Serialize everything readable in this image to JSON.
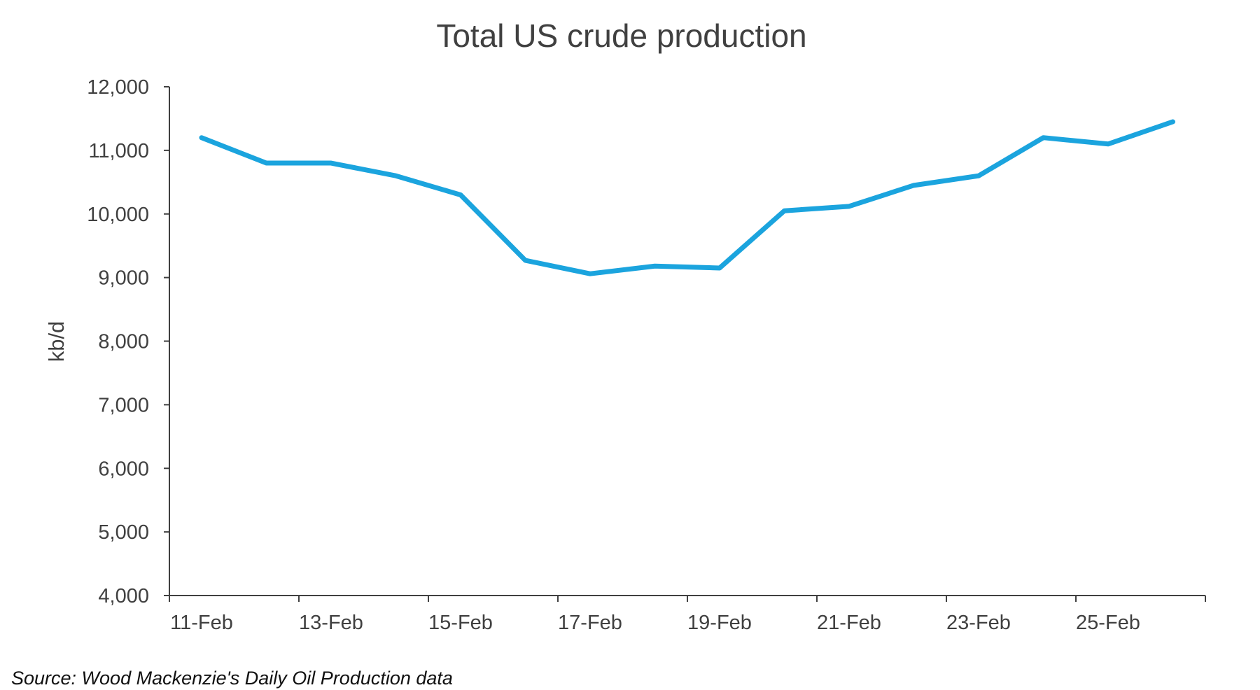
{
  "chart_data": {
    "type": "line",
    "title": "Total US crude production",
    "ylabel": "kb/d",
    "xlabel": "",
    "source": "Source: Wood Mackenzie's Daily Oil Production data",
    "ylim": [
      4000,
      12000
    ],
    "y_ticks": [
      4000,
      5000,
      6000,
      7000,
      8000,
      9000,
      10000,
      11000,
      12000
    ],
    "y_tick_labels": [
      "4,000",
      "5,000",
      "6,000",
      "7,000",
      "8,000",
      "9,000",
      "10,000",
      "11,000",
      "12,000"
    ],
    "x_tick_labels": [
      "11-Feb",
      "13-Feb",
      "15-Feb",
      "17-Feb",
      "19-Feb",
      "21-Feb",
      "23-Feb",
      "25-Feb"
    ],
    "x": [
      "11-Feb",
      "12-Feb",
      "13-Feb",
      "14-Feb",
      "15-Feb",
      "16-Feb",
      "17-Feb",
      "18-Feb",
      "19-Feb",
      "20-Feb",
      "21-Feb",
      "22-Feb",
      "23-Feb",
      "24-Feb",
      "25-Feb",
      "26-Feb"
    ],
    "grid": false,
    "legend": "none",
    "series": [
      {
        "color": "#1BA4DE",
        "values": [
          11200,
          10800,
          10800,
          10600,
          10300,
          9270,
          9060,
          9180,
          9150,
          10050,
          10120,
          10450,
          10600,
          11200,
          11100,
          11450
        ]
      }
    ]
  }
}
